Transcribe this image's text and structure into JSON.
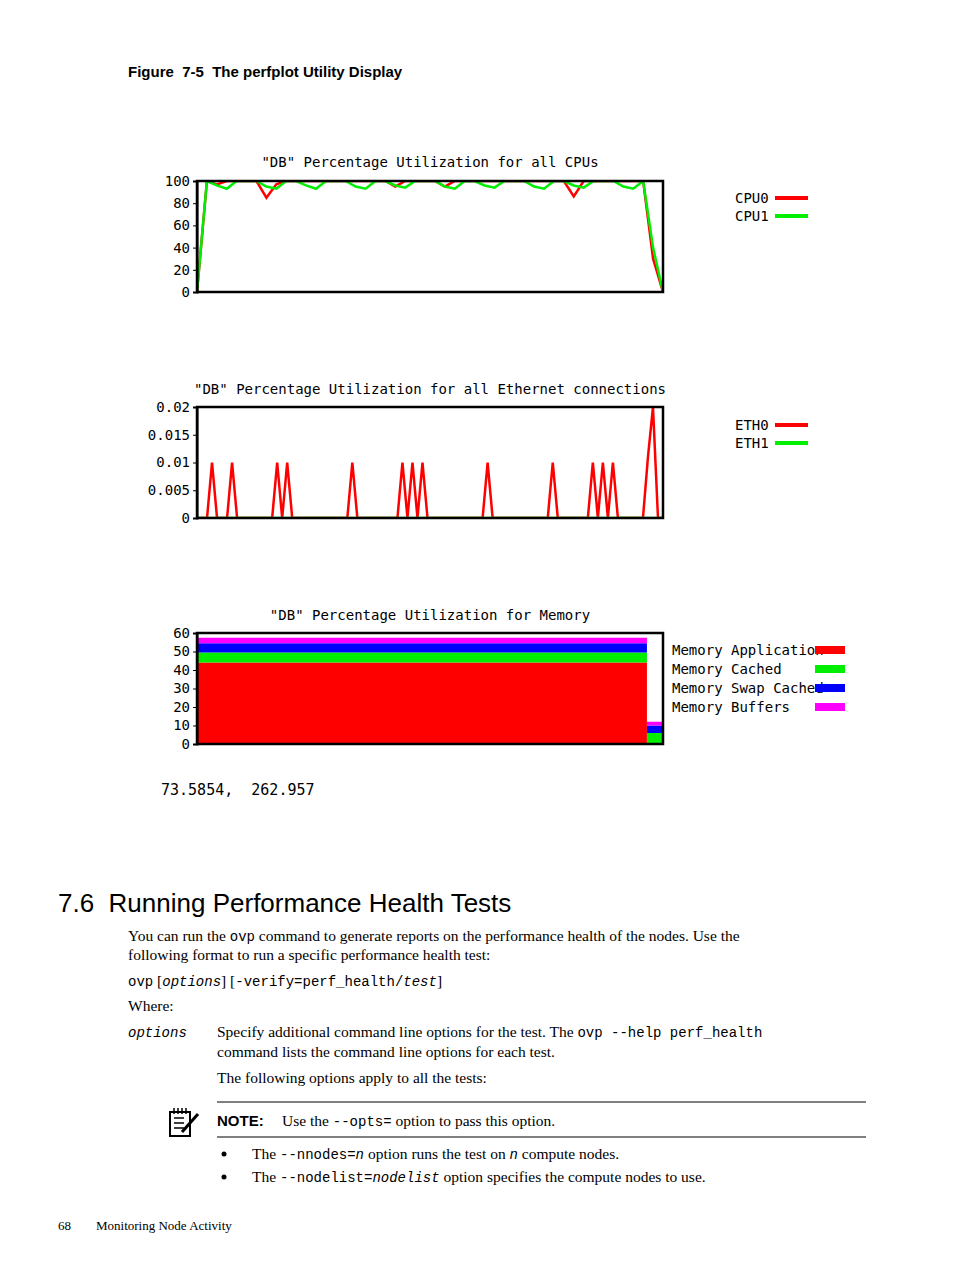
{
  "chart_data": [
    {
      "type": "line",
      "title": "\"DB\" Percentage Utilization for all CPUs",
      "x": [
        0,
        1,
        2,
        3,
        4,
        5,
        6,
        7,
        8,
        9,
        10,
        11,
        12,
        13,
        14,
        15,
        16,
        17,
        18,
        19,
        20,
        21,
        22,
        23,
        24,
        25,
        26,
        27,
        28,
        29,
        30,
        31,
        32,
        33,
        34,
        35,
        36,
        37,
        38,
        39,
        40,
        41,
        42,
        43,
        44,
        45,
        46,
        47
      ],
      "xlim": [
        0,
        47
      ],
      "ylim": [
        0,
        100
      ],
      "yticks": [
        0,
        20,
        40,
        60,
        80,
        100
      ],
      "tick_labels": "y",
      "grid": false,
      "legend": "right",
      "series": [
        {
          "name": "CPU0",
          "color": "#ff0000",
          "values": [
            0,
            100,
            97,
            100,
            100,
            100,
            100,
            85,
            97,
            100,
            100,
            100,
            100,
            100,
            100,
            100,
            100,
            100,
            100,
            100,
            95,
            100,
            100,
            100,
            100,
            95,
            100,
            100,
            100,
            100,
            100,
            100,
            100,
            100,
            100,
            100,
            100,
            100,
            86,
            100,
            100,
            100,
            100,
            100,
            100,
            100,
            30,
            0
          ]
        },
        {
          "name": "CPU1",
          "color": "#00ee00",
          "values": [
            0,
            100,
            96,
            93,
            100,
            100,
            100,
            95,
            93,
            100,
            100,
            96,
            93,
            100,
            100,
            100,
            95,
            93,
            100,
            100,
            96,
            94,
            100,
            100,
            100,
            95,
            93,
            100,
            100,
            96,
            94,
            100,
            100,
            100,
            95,
            93,
            100,
            100,
            96,
            94,
            100,
            100,
            100,
            95,
            93,
            100,
            40,
            0
          ]
        }
      ]
    },
    {
      "type": "line",
      "title": "\"DB\" Percentage Utilization for all Ethernet connections",
      "x": [
        0,
        1,
        2,
        3,
        4,
        5,
        6,
        7,
        8,
        9,
        10,
        11,
        12,
        13,
        14,
        15,
        16,
        17,
        18,
        19,
        20,
        21,
        22,
        23,
        24,
        25,
        26,
        27,
        28,
        29,
        30,
        31,
        32,
        33,
        34,
        35,
        36,
        37,
        38,
        39,
        40,
        41,
        42,
        43,
        44,
        45,
        46,
        47,
        48,
        49,
        50,
        51,
        52,
        53,
        54,
        55,
        56,
        57,
        58,
        59,
        60,
        61,
        62,
        63,
        64,
        65,
        66,
        67,
        68,
        69,
        70,
        71,
        72,
        73,
        74,
        75,
        76,
        77,
        78,
        79,
        80,
        81,
        82,
        83,
        84,
        85,
        86,
        87,
        88,
        89,
        90,
        91,
        92,
        93
      ],
      "xlim": [
        0,
        93
      ],
      "ylim": [
        0,
        0.02
      ],
      "yticks": [
        0,
        0.005,
        0.01,
        0.015,
        0.02
      ],
      "tick_labels": "y",
      "grid": false,
      "legend": "right",
      "series": [
        {
          "name": "ETH0",
          "color": "#ff0000",
          "values": [
            0,
            0,
            0,
            0.01,
            0,
            0,
            0,
            0.01,
            0,
            0,
            0,
            0,
            0,
            0,
            0,
            0,
            0.01,
            0,
            0.01,
            0,
            0,
            0,
            0,
            0,
            0,
            0,
            0,
            0,
            0,
            0,
            0,
            0.01,
            0,
            0,
            0,
            0,
            0,
            0,
            0,
            0,
            0,
            0.01,
            0,
            0.01,
            0,
            0.01,
            0,
            0,
            0,
            0,
            0,
            0,
            0,
            0,
            0,
            0,
            0,
            0,
            0.01,
            0,
            0,
            0,
            0,
            0,
            0,
            0,
            0,
            0,
            0,
            0,
            0,
            0.01,
            0,
            0,
            0,
            0,
            0,
            0,
            0,
            0.01,
            0,
            0.01,
            0,
            0.01,
            0,
            0,
            0,
            0,
            0,
            0,
            0.011,
            0.02,
            0,
            0
          ]
        },
        {
          "name": "ETH1",
          "color": "#00ee00",
          "values": [
            0,
            0,
            0,
            0,
            0,
            0,
            0,
            0,
            0,
            0,
            0,
            0,
            0,
            0,
            0,
            0,
            0,
            0,
            0,
            0,
            0,
            0,
            0,
            0,
            0,
            0,
            0,
            0,
            0,
            0,
            0,
            0,
            0,
            0,
            0,
            0,
            0,
            0,
            0,
            0,
            0,
            0,
            0,
            0,
            0,
            0,
            0,
            0,
            0,
            0,
            0,
            0,
            0,
            0,
            0,
            0,
            0,
            0,
            0,
            0,
            0,
            0,
            0,
            0,
            0,
            0,
            0,
            0,
            0,
            0,
            0,
            0,
            0,
            0,
            0,
            0,
            0,
            0,
            0,
            0,
            0,
            0,
            0,
            0,
            0,
            0,
            0,
            0,
            0,
            0,
            0,
            0,
            0,
            0
          ]
        }
      ]
    },
    {
      "type": "area",
      "stacked": true,
      "title": "\"DB\" Percentage Utilization for Memory",
      "x": [
        0,
        1,
        2,
        3,
        4,
        5,
        6,
        7,
        8,
        9,
        10,
        11,
        12,
        13,
        14,
        15,
        16,
        17,
        18,
        19,
        20,
        21,
        22,
        23,
        24,
        25,
        26,
        27,
        28,
        29
      ],
      "xlim": [
        0,
        29
      ],
      "ylim": [
        0,
        60
      ],
      "yticks": [
        0,
        10,
        20,
        30,
        40,
        50,
        60
      ],
      "tick_labels": "y",
      "grid": false,
      "legend": "right",
      "series": [
        {
          "name": "Memory Application",
          "color": "#ff0000",
          "values": [
            44,
            44,
            44,
            44,
            44,
            44,
            44,
            44,
            44,
            44,
            44,
            44,
            44,
            44,
            44,
            44,
            44,
            44,
            44,
            44,
            44,
            44,
            44,
            44,
            44,
            44,
            44,
            44,
            0,
            0
          ]
        },
        {
          "name": "Memory Cached",
          "color": "#00ee00",
          "values": [
            5.5,
            5.5,
            5.5,
            5.5,
            5.5,
            5.5,
            5.5,
            5.5,
            5.5,
            5.5,
            5.5,
            5.5,
            5.5,
            5.5,
            5.5,
            5.5,
            5.5,
            5.5,
            5.5,
            5.5,
            5.5,
            5.5,
            5.5,
            5.5,
            5.5,
            5.5,
            5.5,
            5.5,
            6,
            6
          ]
        },
        {
          "name": "Memory Swap Cached",
          "color": "#0000ff",
          "values": [
            5,
            5,
            5,
            5,
            5,
            5,
            5,
            5,
            5,
            5,
            5,
            5,
            5,
            5,
            5,
            5,
            5,
            5,
            5,
            5,
            5,
            5,
            5,
            5,
            5,
            5,
            5,
            5,
            4,
            4
          ]
        },
        {
          "name": "Memory Buffers",
          "color": "#ff00ff",
          "values": [
            3,
            3,
            3,
            3,
            3,
            3,
            3,
            3,
            3,
            3,
            3,
            3,
            3,
            3,
            3,
            3,
            3,
            3,
            3,
            3,
            3,
            3,
            3,
            3,
            3,
            3,
            3,
            3,
            2,
            2
          ]
        }
      ]
    }
  ],
  "document": {
    "figure_caption": "Figure  7-5  The perfplot Utility Display",
    "cursor_readout": "73.5854,  262.957",
    "section_heading": "7.6  Running Performance Health Tests",
    "body": [
      [
        [
          "You can run the ",
          "r"
        ],
        [
          "ovp",
          "c"
        ],
        [
          " command to generate reports on the performance health of the nodes. Use the",
          "r"
        ]
      ],
      [
        [
          "following format to run a specific performance health test:",
          "r"
        ]
      ],
      [
        [
          "ovp",
          "c"
        ],
        [
          " [",
          "r"
        ],
        [
          "options",
          "ci"
        ],
        [
          "] [",
          "r"
        ],
        [
          "-verify=perf_health/",
          "c"
        ],
        [
          "test",
          "ci"
        ],
        [
          "]",
          "r"
        ]
      ],
      [
        [
          "Where:",
          "r"
        ]
      ]
    ],
    "definition": {
      "term": "options",
      "lines": [
        [
          [
            "Specify additional command line options for the test. The ",
            "r"
          ],
          [
            "ovp --help perf_health",
            "c"
          ]
        ],
        [
          [
            "command lists the command line options for each test.",
            "r"
          ]
        ],
        [
          [
            "The following options apply to all the tests:",
            "r"
          ]
        ]
      ]
    },
    "note": {
      "label": "NOTE:",
      "runs": [
        [
          "Use the ",
          "r"
        ],
        [
          "--opts=",
          "c"
        ],
        [
          " option to pass this option.",
          "r"
        ]
      ]
    },
    "bullets": [
      [
        [
          "The ",
          "r"
        ],
        [
          "--nnodes=",
          "c"
        ],
        [
          "n",
          "ci"
        ],
        [
          " option runs the test on ",
          "r"
        ],
        [
          "n",
          "ci"
        ],
        [
          " compute nodes.",
          "r"
        ]
      ],
      [
        [
          "The ",
          "r"
        ],
        [
          "--nodelist=",
          "c"
        ],
        [
          "nodelist",
          "ci"
        ],
        [
          " option specifies the compute nodes to use.",
          "r"
        ]
      ]
    ],
    "footer": {
      "page": "68",
      "title": "Monitoring Node Activity"
    }
  }
}
